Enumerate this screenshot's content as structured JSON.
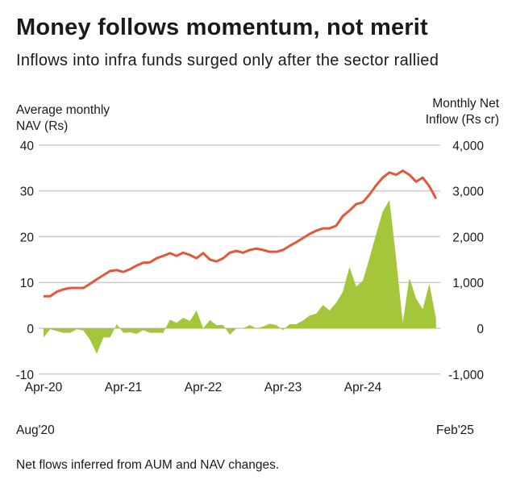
{
  "title": "Money follows momentum, not merit",
  "subtitle": "Inflows into infra funds surged only after the sector rallied",
  "footnote": "Net flows inferred from AUM and NAV changes.",
  "colors": {
    "nav_line": "#e5573b",
    "inflow_area": "#a5c63b",
    "grid": "#cccccc"
  },
  "chart_data": {
    "type": "line+area",
    "title": "Money follows momentum, not merit",
    "y_left": {
      "label": "Average monthly NAV (Rs)",
      "ticks": [
        "40",
        "30",
        "20",
        "10",
        "0",
        "-10"
      ],
      "tick_values": [
        40,
        30,
        20,
        10,
        0,
        -10
      ],
      "range": [
        -10,
        40
      ]
    },
    "y_right": {
      "label": "Monthly Net Inflow (Rs cr)",
      "ticks": [
        "4,000",
        "3,000",
        "2,000",
        "1,000",
        "0",
        "-1,000"
      ],
      "tick_values": [
        4000,
        3000,
        2000,
        1000,
        0,
        -1000
      ],
      "range": [
        -1000,
        4000
      ]
    },
    "x_ticks": [
      "Apr-20",
      "Apr-21",
      "Apr-22",
      "Apr-23",
      "Apr-24"
    ],
    "x_tick_index": [
      0,
      12,
      24,
      36,
      48
    ],
    "annotations": {
      "start": "Aug'20",
      "end": "Feb'25"
    },
    "grid": true,
    "series": [
      {
        "name": "Average monthly NAV (Rs)",
        "axis": "left",
        "type": "line",
        "values": [
          7.0,
          7.0,
          8.0,
          8.5,
          8.8,
          8.8,
          8.8,
          9.7,
          10.7,
          11.6,
          12.5,
          12.7,
          12.3,
          12.9,
          13.7,
          14.3,
          14.4,
          15.3,
          15.8,
          16.4,
          15.8,
          16.5,
          16.0,
          15.3,
          16.4,
          15.0,
          14.6,
          15.3,
          16.5,
          16.9,
          16.5,
          17.1,
          17.4,
          17.1,
          16.7,
          16.7,
          17.1,
          18.0,
          18.8,
          19.7,
          20.6,
          21.3,
          21.8,
          21.8,
          22.4,
          24.5,
          25.7,
          27.1,
          27.5,
          29.2,
          31.2,
          32.9,
          34.0,
          33.5,
          34.4,
          33.5,
          32.0,
          32.9,
          31.0,
          28.3
        ]
      },
      {
        "name": "Monthly Net Inflow (Rs cr)",
        "axis": "right",
        "type": "area",
        "values": [
          -200,
          -20,
          -60,
          -100,
          -100,
          -20,
          -50,
          -250,
          -560,
          -200,
          -200,
          90,
          -100,
          -90,
          -120,
          -40,
          -100,
          -100,
          -100,
          190,
          120,
          230,
          160,
          390,
          0,
          180,
          70,
          70,
          -140,
          0,
          0,
          70,
          0,
          40,
          100,
          70,
          -40,
          90,
          90,
          170,
          280,
          320,
          510,
          390,
          560,
          800,
          1340,
          910,
          1040,
          1530,
          2060,
          2550,
          2800,
          1530,
          120,
          1100,
          650,
          420,
          970,
          210
        ]
      }
    ]
  }
}
